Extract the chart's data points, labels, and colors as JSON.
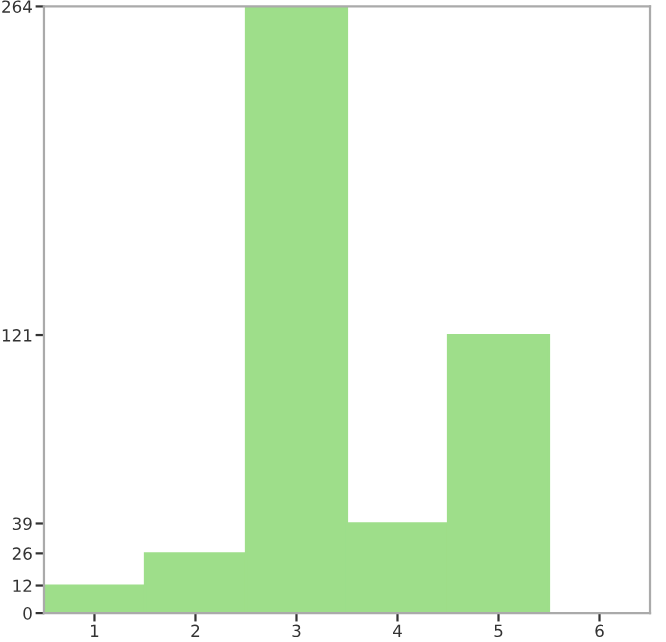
{
  "chart_data": {
    "type": "bar",
    "categories": [
      "1",
      "2",
      "3",
      "4",
      "5",
      "6"
    ],
    "values": [
      12,
      26,
      264,
      39,
      121,
      0
    ],
    "color": "#9ede8a",
    "ylim": [
      0,
      264
    ],
    "yticks": [
      0,
      12,
      26,
      39,
      121,
      264
    ],
    "grid": false
  }
}
